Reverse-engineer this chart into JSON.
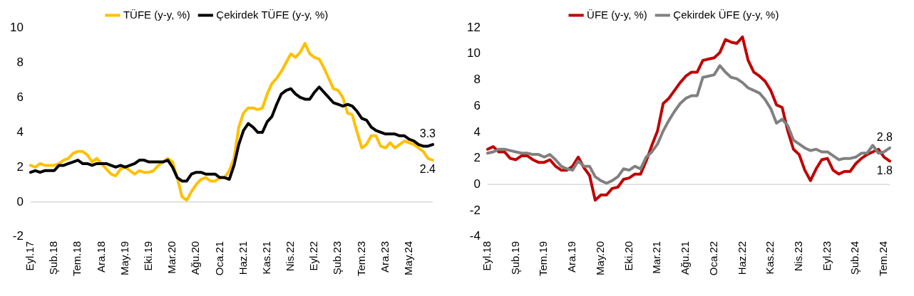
{
  "chart_data": [
    {
      "type": "line",
      "legend": "top",
      "ylim": [
        -2,
        10
      ],
      "yticks": [
        -2,
        0,
        2,
        4,
        6,
        8,
        10
      ],
      "categories": [
        "Eyl.17",
        null,
        null,
        null,
        null,
        "Şub.18",
        null,
        null,
        null,
        null,
        "Tem.18",
        null,
        null,
        null,
        null,
        "Ara.18",
        null,
        null,
        null,
        null,
        "May.19",
        null,
        null,
        null,
        null,
        "Eki.19",
        null,
        null,
        null,
        null,
        "Mar.20",
        null,
        null,
        null,
        null,
        "Ağu.20",
        null,
        null,
        null,
        null,
        "Oca.21",
        null,
        null,
        null,
        null,
        "Haz.21",
        null,
        null,
        null,
        null,
        "Kas.21",
        null,
        null,
        null,
        null,
        "Nis.22",
        null,
        null,
        null,
        null,
        "Eyl.22",
        null,
        null,
        null,
        null,
        "Şub.23",
        null,
        null,
        null,
        null,
        "Tem.23",
        null,
        null,
        null,
        null,
        "Ara.23",
        null,
        null,
        null,
        null,
        "May.24",
        null,
        null,
        null,
        null,
        null
      ],
      "series": [
        {
          "name": "TÜFE (y-y, %)",
          "color": "#ffc000",
          "values": [
            2.1,
            2.0,
            2.2,
            2.1,
            2.1,
            2.1,
            2.2,
            2.4,
            2.5,
            2.8,
            2.9,
            2.9,
            2.7,
            2.3,
            2.5,
            2.2,
            1.9,
            1.6,
            1.5,
            1.9,
            2.0,
            1.8,
            1.6,
            1.8,
            1.7,
            1.7,
            1.8,
            2.1,
            2.3,
            2.5,
            2.3,
            1.4,
            0.3,
            0.1,
            0.6,
            1.0,
            1.3,
            1.4,
            1.2,
            1.2,
            1.4,
            1.4,
            1.8,
            2.5,
            4.3,
            5.1,
            5.4,
            5.4,
            5.3,
            5.4,
            6.2,
            6.8,
            7.1,
            7.5,
            8.0,
            8.5,
            8.3,
            8.6,
            9.1,
            8.5,
            8.3,
            8.2,
            7.7,
            7.1,
            6.5,
            6.4,
            6.0,
            5.1,
            5.0,
            4.0,
            3.1,
            3.3,
            3.8,
            3.8,
            3.2,
            3.1,
            3.4,
            3.1,
            3.3,
            3.5,
            3.4,
            3.3,
            3.1,
            2.9,
            2.5,
            2.4
          ],
          "value_labels": [
            null,
            null,
            null,
            null,
            null,
            null,
            null,
            null,
            null,
            null,
            null,
            null,
            null,
            null,
            null,
            null,
            null,
            null,
            null,
            null,
            null,
            null,
            null,
            null,
            null,
            null,
            null,
            null,
            null,
            null,
            null,
            null,
            null,
            null,
            null,
            null,
            null,
            null,
            null,
            null,
            null,
            null,
            null,
            null,
            null,
            null,
            null,
            null,
            null,
            null,
            null,
            null,
            null,
            null,
            null,
            null,
            null,
            null,
            null,
            null,
            null,
            null,
            null,
            null,
            null,
            null,
            null,
            null,
            null,
            null,
            null,
            null,
            null,
            null,
            null,
            null,
            null,
            null,
            null,
            null,
            null,
            null,
            null,
            null,
            null,
            "2.4"
          ]
        },
        {
          "name": "Çekirdek TÜFE (y-y, %)",
          "color": "#000000",
          "values": [
            1.7,
            1.8,
            1.7,
            1.8,
            1.8,
            1.8,
            2.1,
            2.1,
            2.2,
            2.3,
            2.4,
            2.2,
            2.2,
            2.1,
            2.2,
            2.2,
            2.2,
            2.1,
            2.0,
            2.1,
            2.0,
            2.1,
            2.2,
            2.4,
            2.4,
            2.3,
            2.3,
            2.3,
            2.3,
            2.4,
            2.0,
            1.4,
            1.2,
            1.2,
            1.6,
            1.7,
            1.7,
            1.6,
            1.6,
            1.6,
            1.4,
            1.4,
            1.3,
            2.1,
            3.3,
            4.1,
            4.5,
            4.3,
            4.0,
            4.0,
            4.6,
            4.9,
            5.6,
            6.2,
            6.4,
            6.5,
            6.2,
            6.0,
            5.9,
            5.9,
            6.3,
            6.6,
            6.3,
            6.0,
            5.7,
            5.6,
            5.5,
            5.6,
            5.5,
            5.2,
            4.8,
            4.7,
            4.3,
            4.1,
            4.0,
            3.9,
            3.9,
            3.9,
            3.8,
            3.8,
            3.6,
            3.5,
            3.3,
            3.2,
            3.2,
            3.3
          ],
          "value_labels": [
            null,
            null,
            null,
            null,
            null,
            null,
            null,
            null,
            null,
            null,
            null,
            null,
            null,
            null,
            null,
            null,
            null,
            null,
            null,
            null,
            null,
            null,
            null,
            null,
            null,
            null,
            null,
            null,
            null,
            null,
            null,
            null,
            null,
            null,
            null,
            null,
            null,
            null,
            null,
            null,
            null,
            null,
            null,
            null,
            null,
            null,
            null,
            null,
            null,
            null,
            null,
            null,
            null,
            null,
            null,
            null,
            null,
            null,
            null,
            null,
            null,
            null,
            null,
            null,
            null,
            null,
            null,
            null,
            null,
            null,
            null,
            null,
            null,
            null,
            null,
            null,
            null,
            null,
            null,
            null,
            null,
            null,
            null,
            null,
            null,
            "3.3"
          ]
        }
      ]
    },
    {
      "type": "line",
      "legend": "top",
      "ylim": [
        -4,
        12
      ],
      "yticks": [
        -4,
        -2,
        0,
        2,
        4,
        6,
        8,
        10,
        12
      ],
      "categories": [
        "Eyl.18",
        null,
        null,
        null,
        null,
        "Şub.19",
        null,
        null,
        null,
        null,
        "Tem.19",
        null,
        null,
        null,
        null,
        "Ara.19",
        null,
        null,
        null,
        null,
        "May.20",
        null,
        null,
        null,
        null,
        "Eki.20",
        null,
        null,
        null,
        null,
        "Mar.21",
        null,
        null,
        null,
        null,
        "Ağu.21",
        null,
        null,
        null,
        null,
        "Oca.22",
        null,
        null,
        null,
        null,
        "Haz.22",
        null,
        null,
        null,
        null,
        "Kas.22",
        null,
        null,
        null,
        null,
        "Nis.23",
        null,
        null,
        null,
        null,
        "Eyl.23",
        null,
        null,
        null,
        null,
        "Şub.24",
        null,
        null,
        null,
        null,
        "Tem.24",
        null
      ],
      "series": [
        {
          "name": "ÜFE (y-y, %)",
          "color": "#c00000",
          "values": [
            2.7,
            2.9,
            2.5,
            2.5,
            2.0,
            1.9,
            2.2,
            2.2,
            1.9,
            1.7,
            1.7,
            1.9,
            1.4,
            1.1,
            1.1,
            1.4,
            2.1,
            1.3,
            0.7,
            -1.2,
            -0.8,
            -0.8,
            -0.3,
            -0.2,
            0.4,
            0.5,
            0.8,
            0.8,
            1.8,
            3.0,
            4.1,
            6.2,
            6.6,
            7.2,
            7.8,
            8.3,
            8.6,
            8.6,
            9.5,
            9.6,
            9.7,
            10.1,
            11.1,
            10.9,
            10.8,
            11.3,
            9.5,
            8.6,
            8.3,
            7.9,
            7.2,
            6.1,
            5.9,
            4.1,
            2.7,
            2.3,
            1.1,
            0.3,
            1.2,
            1.9,
            2.0,
            1.1,
            0.8,
            1.0,
            1.0,
            1.6,
            2.0,
            2.3,
            2.5,
            2.7,
            2.1,
            1.8
          ],
          "value_labels": [
            null,
            null,
            null,
            null,
            null,
            null,
            null,
            null,
            null,
            null,
            null,
            null,
            null,
            null,
            null,
            null,
            null,
            null,
            null,
            null,
            null,
            null,
            null,
            null,
            null,
            null,
            null,
            null,
            null,
            null,
            null,
            null,
            null,
            null,
            null,
            null,
            null,
            null,
            null,
            null,
            null,
            null,
            null,
            null,
            null,
            null,
            null,
            null,
            null,
            null,
            null,
            null,
            null,
            null,
            null,
            null,
            null,
            null,
            null,
            null,
            null,
            null,
            null,
            null,
            null,
            null,
            null,
            null,
            null,
            null,
            null,
            "1.8"
          ]
        },
        {
          "name": "Çekirdek ÜFE (y-y, %)",
          "color": "#808080",
          "values": [
            2.4,
            2.5,
            2.7,
            2.7,
            2.6,
            2.5,
            2.4,
            2.4,
            2.3,
            2.3,
            2.1,
            2.3,
            1.9,
            1.4,
            1.2,
            1.1,
            1.8,
            1.4,
            1.4,
            0.6,
            0.3,
            0.1,
            0.3,
            0.6,
            1.2,
            1.1,
            1.4,
            1.2,
            2.1,
            2.5,
            3.1,
            4.1,
            4.9,
            5.6,
            6.2,
            6.6,
            6.8,
            6.8,
            8.2,
            8.3,
            8.4,
            9.1,
            8.6,
            8.2,
            8.1,
            7.8,
            7.4,
            7.2,
            7.0,
            6.5,
            5.8,
            4.7,
            5.0,
            4.5,
            3.4,
            3.1,
            2.8,
            2.6,
            2.7,
            2.5,
            2.5,
            2.2,
            1.9,
            2.0,
            2.0,
            2.1,
            2.4,
            2.4,
            3.0,
            2.4,
            2.5,
            2.8
          ],
          "value_labels": [
            null,
            null,
            null,
            null,
            null,
            null,
            null,
            null,
            null,
            null,
            null,
            null,
            null,
            null,
            null,
            null,
            null,
            null,
            null,
            null,
            null,
            null,
            null,
            null,
            null,
            null,
            null,
            null,
            null,
            null,
            null,
            null,
            null,
            null,
            null,
            null,
            null,
            null,
            null,
            null,
            null,
            null,
            null,
            null,
            null,
            null,
            null,
            null,
            null,
            null,
            null,
            null,
            null,
            null,
            null,
            null,
            null,
            null,
            null,
            null,
            null,
            null,
            null,
            null,
            null,
            null,
            null,
            null,
            null,
            null,
            null,
            "2.8"
          ]
        }
      ]
    }
  ]
}
